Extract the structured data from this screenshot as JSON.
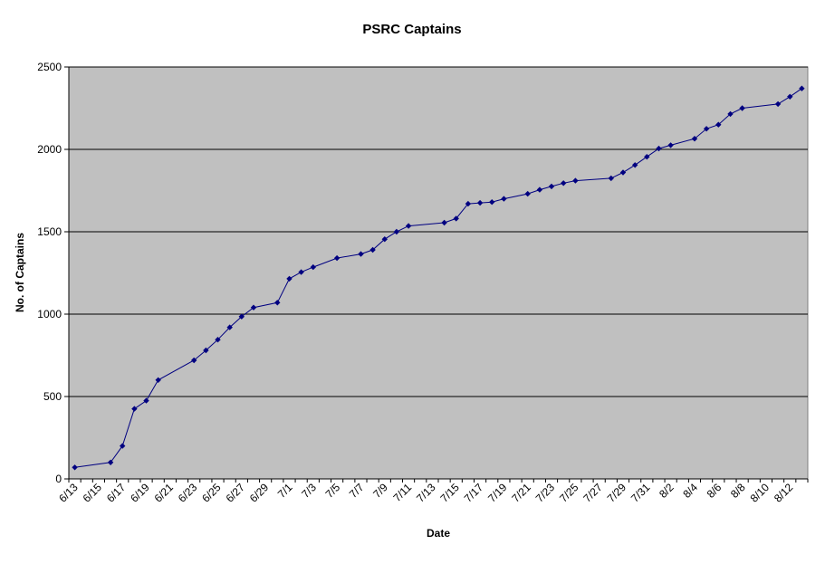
{
  "chart_data": {
    "type": "line",
    "title": "PSRC Captains",
    "xlabel": "Date",
    "ylabel": "No. of Captains",
    "ylim": [
      0,
      2500
    ],
    "yticks": [
      0,
      500,
      1000,
      1500,
      2000,
      2500
    ],
    "x_tick_labels": [
      "6/13",
      "6/15",
      "6/17",
      "6/19",
      "6/21",
      "6/23",
      "6/25",
      "6/27",
      "6/29",
      "7/1",
      "7/3",
      "7/5",
      "7/7",
      "7/9",
      "7/11",
      "7/13",
      "7/15",
      "7/17",
      "7/19",
      "7/21",
      "7/23",
      "7/25",
      "7/27",
      "7/29",
      "7/31",
      "8/2",
      "8/4",
      "8/6",
      "8/8",
      "8/10",
      "8/12"
    ],
    "grid": "horizontal major gridlines",
    "legend": "none",
    "plot_background": "#C0C0C0",
    "line_color": "#000080",
    "marker": "diamond",
    "series": [
      {
        "x": [
          "6/13",
          "6/16",
          "6/17",
          "6/18",
          "6/19",
          "6/20",
          "6/23",
          "6/24",
          "6/25",
          "6/26",
          "6/27",
          "6/28",
          "6/30",
          "7/1",
          "7/2",
          "7/3",
          "7/5",
          "7/7",
          "7/8",
          "7/9",
          "7/10",
          "7/11",
          "7/14",
          "7/15",
          "7/16",
          "7/17",
          "7/18",
          "7/19",
          "7/21",
          "7/22",
          "7/23",
          "7/24",
          "7/25",
          "7/28",
          "7/29",
          "7/30",
          "7/31",
          "8/1",
          "8/2",
          "8/4",
          "8/5",
          "8/6",
          "8/7",
          "8/8",
          "8/11",
          "8/12",
          "8/13"
        ],
        "values": [
          70,
          100,
          200,
          425,
          475,
          600,
          720,
          780,
          845,
          920,
          985,
          1040,
          1070,
          1215,
          1255,
          1285,
          1340,
          1365,
          1390,
          1455,
          1500,
          1535,
          1555,
          1580,
          1670,
          1675,
          1680,
          1700,
          1730,
          1755,
          1775,
          1795,
          1810,
          1825,
          1860,
          1905,
          1955,
          2005,
          2025,
          2065,
          2125,
          2150,
          2215,
          2250,
          2275,
          2320,
          2370
        ]
      }
    ]
  }
}
